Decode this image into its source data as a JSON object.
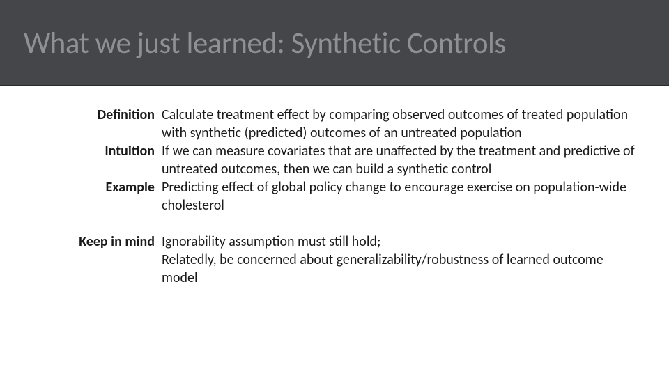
{
  "title": "What we just learned: Synthetic Controls",
  "rows": [
    {
      "label": "Definition",
      "value": "Calculate treatment effect by comparing observed outcomes of treated population with synthetic (predicted) outcomes of an untreated population"
    },
    {
      "label": "Intuition",
      "value": "If we can measure covariates that are unaffected by the treatment and predictive of untreated outcomes, then we can build a synthetic control"
    },
    {
      "label": "Example",
      "value": "Predicting effect of global policy change to encourage exercise on population-wide cholesterol"
    },
    {
      "label": "Keep in mind",
      "value": "Ignorability assumption must still hold;\nRelatedly, be concerned about generalizability/robustness of learned outcome model"
    }
  ],
  "colors": {
    "titlebar_bg": "#44464a",
    "titlebar_border": "#2a2b2e",
    "title_text": "#8f9094",
    "body_text": "#1a1a1a",
    "page_bg": "#ffffff"
  },
  "typography": {
    "title_fontsize": 43,
    "body_fontsize": 20,
    "label_weight": 700,
    "font_family": "Calibri"
  },
  "layout": {
    "titlebar_height": 124,
    "content_left_pad": 110,
    "label_col_width": 122,
    "gap_after_row_index": 2
  }
}
